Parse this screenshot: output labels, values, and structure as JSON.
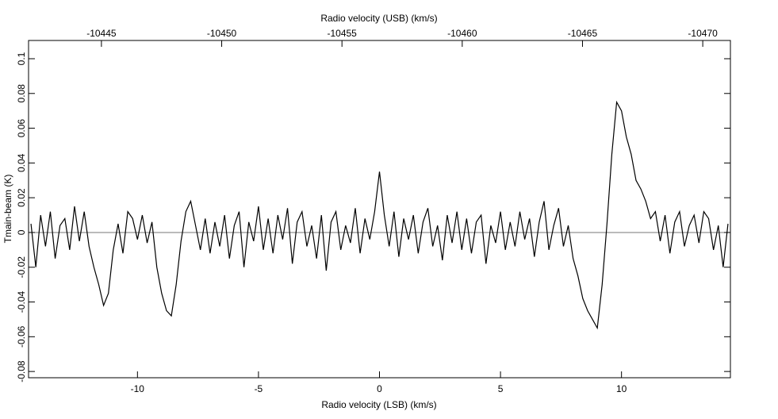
{
  "chart_data": {
    "type": "line",
    "title": "Radio velocity (USB) (km/s)",
    "xlabel": "Radio velocity (LSB) (km/s)",
    "ylabel": "Tmain-beam (K)",
    "x": [
      -14.4,
      -14.2,
      -14,
      -13.8,
      -13.6,
      -13.4,
      -13.2,
      -13,
      -12.8,
      -12.6,
      -12.4,
      -12.2,
      -12,
      -11.8,
      -11.6,
      -11.4,
      -11.2,
      -11,
      -10.8,
      -10.6,
      -10.4,
      -10.2,
      -10,
      -9.8,
      -9.6,
      -9.4,
      -9.2,
      -9,
      -8.8,
      -8.6,
      -8.4,
      -8.2,
      -8,
      -7.8,
      -7.6,
      -7.4,
      -7.2,
      -7,
      -6.8,
      -6.6,
      -6.4,
      -6.2,
      -6,
      -5.8,
      -5.6,
      -5.4,
      -5.2,
      -5,
      -4.8,
      -4.6,
      -4.4,
      -4.2,
      -4,
      -3.8,
      -3.6,
      -3.4,
      -3.2,
      -3,
      -2.8,
      -2.6,
      -2.4,
      -2.2,
      -2,
      -1.8,
      -1.6,
      -1.4,
      -1.2,
      -1,
      -0.8,
      -0.6,
      -0.4,
      -0.2,
      0,
      0.2,
      0.4,
      0.6,
      0.8,
      1,
      1.2,
      1.4,
      1.6,
      1.8,
      2,
      2.2,
      2.4,
      2.6,
      2.8,
      3,
      3.2,
      3.4,
      3.6,
      3.8,
      4,
      4.2,
      4.4,
      4.6,
      4.8,
      5,
      5.2,
      5.4,
      5.6,
      5.8,
      6,
      6.2,
      6.4,
      6.6,
      6.8,
      7,
      7.2,
      7.4,
      7.6,
      7.8,
      8,
      8.2,
      8.4,
      8.6,
      8.8,
      9,
      9.2,
      9.4,
      9.6,
      9.8,
      10,
      10.2,
      10.4,
      10.6,
      10.8,
      11,
      11.2,
      11.4,
      11.6,
      11.8,
      12,
      12.2,
      12.4,
      12.6,
      12.8,
      13,
      13.2,
      13.4,
      13.6,
      13.8,
      14,
      14.2,
      14.4
    ],
    "series": [
      {
        "color": "#000000",
        "values": [
          0.005,
          -0.02,
          0.01,
          -0.008,
          0.012,
          -0.015,
          0.004,
          0.008,
          -0.01,
          0.015,
          -0.005,
          0.012,
          -0.008,
          -0.02,
          -0.03,
          -0.042,
          -0.035,
          -0.01,
          0.005,
          -0.012,
          0.012,
          0.008,
          -0.004,
          0.01,
          -0.006,
          0.006,
          -0.02,
          -0.035,
          -0.045,
          -0.048,
          -0.03,
          -0.005,
          0.012,
          0.018,
          0.004,
          -0.01,
          0.008,
          -0.012,
          0.006,
          -0.008,
          0.01,
          -0.015,
          0.004,
          0.012,
          -0.02,
          0.006,
          -0.005,
          0.015,
          -0.01,
          0.008,
          -0.012,
          0.01,
          -0.004,
          0.014,
          -0.018,
          0.006,
          0.012,
          -0.008,
          0.004,
          -0.015,
          0.01,
          -0.022,
          0.006,
          0.012,
          -0.01,
          0.004,
          -0.006,
          0.014,
          -0.012,
          0.008,
          -0.004,
          0.012,
          0.035,
          0.01,
          -0.008,
          0.012,
          -0.014,
          0.008,
          -0.004,
          0.01,
          -0.012,
          0.006,
          0.014,
          -0.008,
          0.004,
          -0.016,
          0.01,
          -0.006,
          0.012,
          -0.01,
          0.008,
          -0.012,
          0.006,
          0.01,
          -0.018,
          0.004,
          -0.006,
          0.012,
          -0.01,
          0.006,
          -0.008,
          0.012,
          -0.004,
          0.008,
          -0.014,
          0.006,
          0.018,
          -0.01,
          0.004,
          0.014,
          -0.008,
          0.004,
          -0.015,
          -0.025,
          -0.038,
          -0.045,
          -0.05,
          -0.055,
          -0.03,
          0.005,
          0.045,
          0.075,
          0.07,
          0.055,
          0.045,
          0.03,
          0.025,
          0.018,
          0.008,
          0.012,
          -0.005,
          0.01,
          -0.012,
          0.006,
          0.012,
          -0.008,
          0.004,
          0.01,
          -0.006,
          0.012,
          0.008,
          -0.01,
          0.004,
          -0.02,
          0.005
        ]
      }
    ],
    "xlim": [
      -14.5,
      14.5
    ],
    "xticks": [
      -10,
      -5,
      0,
      5,
      10
    ],
    "x2lim": [
      -10441.97,
      -10471.15
    ],
    "x2ticks": [
      -10445,
      -10450,
      -10455,
      -10460,
      -10465,
      -10470
    ],
    "ylim": [
      -0.0836,
      0.1105
    ],
    "yticks": [
      -0.08,
      -0.06,
      -0.04,
      -0.02,
      0,
      0.02,
      0.04,
      0.06,
      0.08,
      0.1
    ],
    "grid": false
  }
}
